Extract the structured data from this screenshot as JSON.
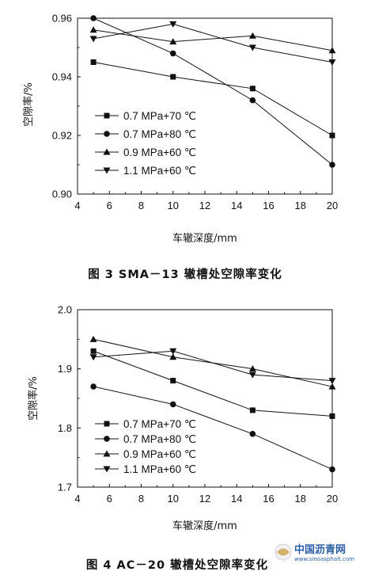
{
  "chart_data": [
    {
      "type": "line",
      "caption": "图 3   SMA－13 辙槽处空隙率变化",
      "xlabel": "车辙深度/mm",
      "ylabel": "空隙率/%",
      "xlim": [
        4,
        20
      ],
      "ylim": [
        0.9,
        0.96
      ],
      "xticks": [
        "4",
        "6",
        "8",
        "10",
        "12",
        "14",
        "16",
        "18",
        "20"
      ],
      "yticks": [
        "0.90",
        "0.92",
        "0.94",
        "0.96"
      ],
      "legend_position": "lower-left",
      "x": [
        5,
        10,
        15,
        20
      ],
      "series": [
        {
          "name": "0.7 MPa+70 ℃",
          "marker": "square",
          "values": [
            0.945,
            0.94,
            0.936,
            0.92
          ]
        },
        {
          "name": "0.7 MPa+80 ℃",
          "marker": "circle",
          "values": [
            0.96,
            0.948,
            0.932,
            0.91
          ]
        },
        {
          "name": "0.9 MPa+60 ℃",
          "marker": "triangle-up",
          "values": [
            0.956,
            0.952,
            0.954,
            0.949
          ]
        },
        {
          "name": "1.1 MPa+60 ℃",
          "marker": "triangle-down",
          "values": [
            0.953,
            0.958,
            0.95,
            0.945
          ]
        }
      ]
    },
    {
      "type": "line",
      "caption": "图 4   AC－20 辙槽处空隙率变化",
      "xlabel": "车辙深度/mm",
      "ylabel": "空隙率/%",
      "xlim": [
        4,
        20
      ],
      "ylim": [
        1.7,
        2.0
      ],
      "xticks": [
        "4",
        "6",
        "8",
        "10",
        "12",
        "14",
        "16",
        "18",
        "20"
      ],
      "yticks": [
        "1.7",
        "1.8",
        "1.9",
        "2.0"
      ],
      "legend_position": "lower-left",
      "x": [
        5,
        10,
        15,
        20
      ],
      "series": [
        {
          "name": "0.7 MPa+70 ℃",
          "marker": "square",
          "values": [
            1.93,
            1.88,
            1.83,
            1.82
          ]
        },
        {
          "name": "0.7 MPa+80 ℃",
          "marker": "circle",
          "values": [
            1.87,
            1.84,
            1.79,
            1.73
          ]
        },
        {
          "name": "0.9 MPa+60 ℃",
          "marker": "triangle-up",
          "values": [
            1.95,
            1.92,
            1.9,
            1.87
          ]
        },
        {
          "name": "1.1 MPa+60 ℃",
          "marker": "triangle-down",
          "values": [
            1.92,
            1.93,
            1.89,
            1.88
          ]
        }
      ]
    }
  ],
  "watermark": {
    "name": "中国沥青网",
    "url": "www.sinoasphalt.com"
  }
}
